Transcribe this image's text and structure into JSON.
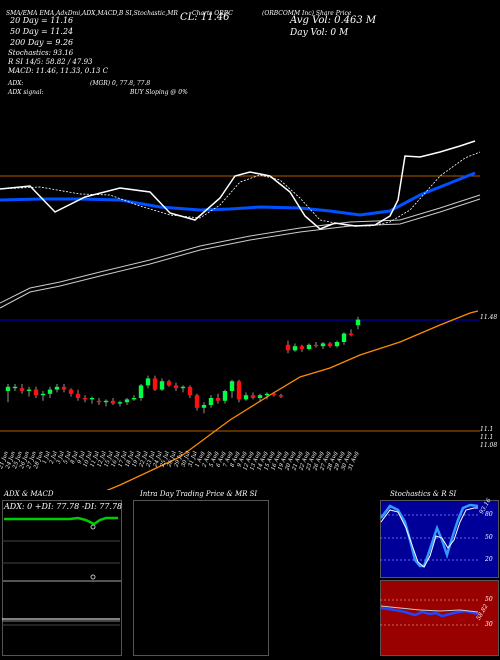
{
  "header": {
    "indicators_line": "SMA/EMA EMA,AdxDmi,ADX,MACD,B SI,Stochastic,MR",
    "mid_label": "CL: 11.46",
    "charts_label": "Charts ORBC",
    "company": "(ORBCOMM Inc) Share Price",
    "avg_vol": "Avg Vol: 0.463 M",
    "day_vol": "Day Vol: 0 M",
    "sma20": "20 Day = 11.16",
    "sma50": "50 Day = 11.24",
    "sma200": "200 Day = 9.26",
    "stoch": "Stochastics: 93.16",
    "rsi": "R SI 14/5: 58.82 / 47.93",
    "macd": "MACD: 11.46, 11.33, 0.13 C",
    "adx_line": "ADX:",
    "adx_value": "(MGR) 0, 77.8, 77.8",
    "adx_signal_label": "ADX signal:",
    "signal": "BUY Sloping @ 0%"
  },
  "price_labels": {
    "top": "11.48",
    "low1": "11.1",
    "low2": "11.1",
    "low3": "11.08"
  },
  "bottom": {
    "adx_title": "ADX & MACD",
    "adx_readout": "ADX: 0 +DI: 77.78 -DI: 77.78",
    "intra_title": "Intra Day Trading Price & MR SI",
    "stoch_title": "Stochastics & R SI",
    "stoch_levels": [
      "80",
      "50",
      "20"
    ],
    "rsi_levels": [
      "50",
      "30"
    ],
    "stoch_value": "93.16",
    "rsi_value": "58.82"
  },
  "colors": {
    "up": "#00ff44",
    "down": "#ff1010",
    "sma_blue": "#0050ff",
    "sma_orange": "#ff8c00",
    "rsi_fill": "#990000",
    "stoch_fill": "#000099"
  },
  "chart_data": {
    "type": "candlestick",
    "dates": [
      "21 Jun",
      "24 Jun",
      "25 Jun",
      "26 Jun",
      "27 Jun",
      "28 Jun",
      "1 Jul",
      "2 Jul",
      "3 Jul",
      "5 Jul",
      "8 Jul",
      "9 Jul",
      "10 Jul",
      "11 Jul",
      "12 Jul",
      "15 Jul",
      "16 Jul",
      "17 Jul",
      "18 Jul",
      "19 Jul",
      "22 Jul",
      "23 Jul",
      "24 Jul",
      "25 Jul",
      "26 Jul",
      "29 Jul",
      "30 Jul",
      "31 Jul",
      "1 Aug",
      "2 Aug",
      "5 Aug",
      "6 Aug",
      "7 Aug",
      "8 Aug",
      "9 Aug",
      "12 Aug",
      "13 Aug",
      "14 Aug",
      "15 Aug",
      "16 Aug",
      "19 Aug",
      "20 Aug",
      "21 Aug",
      "22 Aug",
      "23 Aug",
      "26 Aug",
      "27 Aug",
      "28 Aug",
      "29 Aug",
      "30 Aug",
      "31 Aug"
    ],
    "candles": [
      {
        "o": 10.95,
        "h": 11.0,
        "l": 10.87,
        "c": 10.98,
        "up": true
      },
      {
        "o": 10.98,
        "h": 11.0,
        "l": 10.95,
        "c": 10.97,
        "up": true
      },
      {
        "o": 10.97,
        "h": 11.0,
        "l": 10.93,
        "c": 10.95,
        "up": false
      },
      {
        "o": 10.95,
        "h": 10.98,
        "l": 10.91,
        "c": 10.96,
        "up": true
      },
      {
        "o": 10.96,
        "h": 10.98,
        "l": 10.9,
        "c": 10.92,
        "up": false
      },
      {
        "o": 10.92,
        "h": 10.95,
        "l": 10.88,
        "c": 10.93,
        "up": true
      },
      {
        "o": 10.93,
        "h": 10.98,
        "l": 10.9,
        "c": 10.96,
        "up": true
      },
      {
        "o": 10.96,
        "h": 11.0,
        "l": 10.94,
        "c": 10.98,
        "up": true
      },
      {
        "o": 10.98,
        "h": 11.0,
        "l": 10.94,
        "c": 10.96,
        "up": false
      },
      {
        "o": 10.96,
        "h": 10.97,
        "l": 10.91,
        "c": 10.93,
        "up": false
      },
      {
        "o": 10.93,
        "h": 10.96,
        "l": 10.88,
        "c": 10.9,
        "up": false
      },
      {
        "o": 10.9,
        "h": 10.92,
        "l": 10.87,
        "c": 10.89,
        "up": false
      },
      {
        "o": 10.89,
        "h": 10.91,
        "l": 10.86,
        "c": 10.9,
        "up": true
      },
      {
        "o": 10.88,
        "h": 10.9,
        "l": 10.85,
        "c": 10.87,
        "up": false
      },
      {
        "o": 10.87,
        "h": 10.89,
        "l": 10.84,
        "c": 10.88,
        "up": true
      },
      {
        "o": 10.88,
        "h": 10.9,
        "l": 10.85,
        "c": 10.86,
        "up": false
      },
      {
        "o": 10.86,
        "h": 10.88,
        "l": 10.84,
        "c": 10.87,
        "up": true
      },
      {
        "o": 10.87,
        "h": 10.9,
        "l": 10.85,
        "c": 10.89,
        "up": true
      },
      {
        "o": 10.89,
        "h": 10.92,
        "l": 10.88,
        "c": 10.9,
        "up": true
      },
      {
        "o": 10.9,
        "h": 11.0,
        "l": 10.88,
        "c": 10.99,
        "up": true
      },
      {
        "o": 10.99,
        "h": 11.06,
        "l": 10.97,
        "c": 11.04,
        "up": true
      },
      {
        "o": 11.04,
        "h": 11.06,
        "l": 10.95,
        "c": 10.96,
        "up": false
      },
      {
        "o": 10.96,
        "h": 11.04,
        "l": 10.95,
        "c": 11.02,
        "up": true
      },
      {
        "o": 11.02,
        "h": 11.03,
        "l": 10.98,
        "c": 10.99,
        "up": false
      },
      {
        "o": 10.99,
        "h": 11.01,
        "l": 10.95,
        "c": 10.97,
        "up": false
      },
      {
        "o": 10.97,
        "h": 10.99,
        "l": 10.94,
        "c": 10.98,
        "up": true
      },
      {
        "o": 10.98,
        "h": 10.99,
        "l": 10.9,
        "c": 10.92,
        "up": false
      },
      {
        "o": 10.92,
        "h": 10.93,
        "l": 10.81,
        "c": 10.83,
        "up": false
      },
      {
        "o": 10.83,
        "h": 10.87,
        "l": 10.79,
        "c": 10.85,
        "up": true
      },
      {
        "o": 10.85,
        "h": 10.92,
        "l": 10.83,
        "c": 10.9,
        "up": true
      },
      {
        "o": 10.9,
        "h": 10.93,
        "l": 10.86,
        "c": 10.88,
        "up": false
      },
      {
        "o": 10.88,
        "h": 10.96,
        "l": 10.86,
        "c": 10.95,
        "up": true
      },
      {
        "o": 10.95,
        "h": 11.03,
        "l": 10.9,
        "c": 11.02,
        "up": true
      },
      {
        "o": 11.02,
        "h": 11.03,
        "l": 10.87,
        "c": 10.89,
        "up": false
      },
      {
        "o": 10.89,
        "h": 10.94,
        "l": 10.88,
        "c": 10.92,
        "up": true
      },
      {
        "o": 10.92,
        "h": 10.94,
        "l": 10.89,
        "c": 10.9,
        "up": false
      },
      {
        "o": 10.9,
        "h": 10.93,
        "l": 10.88,
        "c": 10.92,
        "up": true
      },
      {
        "o": 10.92,
        "h": 10.94,
        "l": 10.89,
        "c": 10.93,
        "up": true
      },
      {
        "o": 10.93,
        "h": 10.94,
        "l": 10.91,
        "c": 10.92,
        "up": false
      },
      {
        "o": 10.92,
        "h": 10.93,
        "l": 10.9,
        "c": 10.91,
        "up": false
      },
      {
        "o": 11.28,
        "h": 11.31,
        "l": 11.22,
        "c": 11.24,
        "up": false
      },
      {
        "o": 11.24,
        "h": 11.29,
        "l": 11.23,
        "c": 11.27,
        "up": true
      },
      {
        "o": 11.27,
        "h": 11.28,
        "l": 11.23,
        "c": 11.25,
        "up": false
      },
      {
        "o": 11.25,
        "h": 11.29,
        "l": 11.24,
        "c": 11.28,
        "up": true
      },
      {
        "o": 11.28,
        "h": 11.3,
        "l": 11.26,
        "c": 11.27,
        "up": false
      },
      {
        "o": 11.27,
        "h": 11.3,
        "l": 11.25,
        "c": 11.29,
        "up": true
      },
      {
        "o": 11.29,
        "h": 11.3,
        "l": 11.26,
        "c": 11.27,
        "up": false
      },
      {
        "o": 11.27,
        "h": 11.31,
        "l": 11.26,
        "c": 11.3,
        "up": true
      },
      {
        "o": 11.3,
        "h": 11.37,
        "l": 11.28,
        "c": 11.36,
        "up": true
      },
      {
        "o": 11.36,
        "h": 11.39,
        "l": 11.34,
        "c": 11.35,
        "up": false
      },
      {
        "o": 11.42,
        "h": 11.48,
        "l": 11.39,
        "c": 11.46,
        "up": true
      }
    ],
    "ylim": [
      10.6,
      11.6
    ]
  }
}
